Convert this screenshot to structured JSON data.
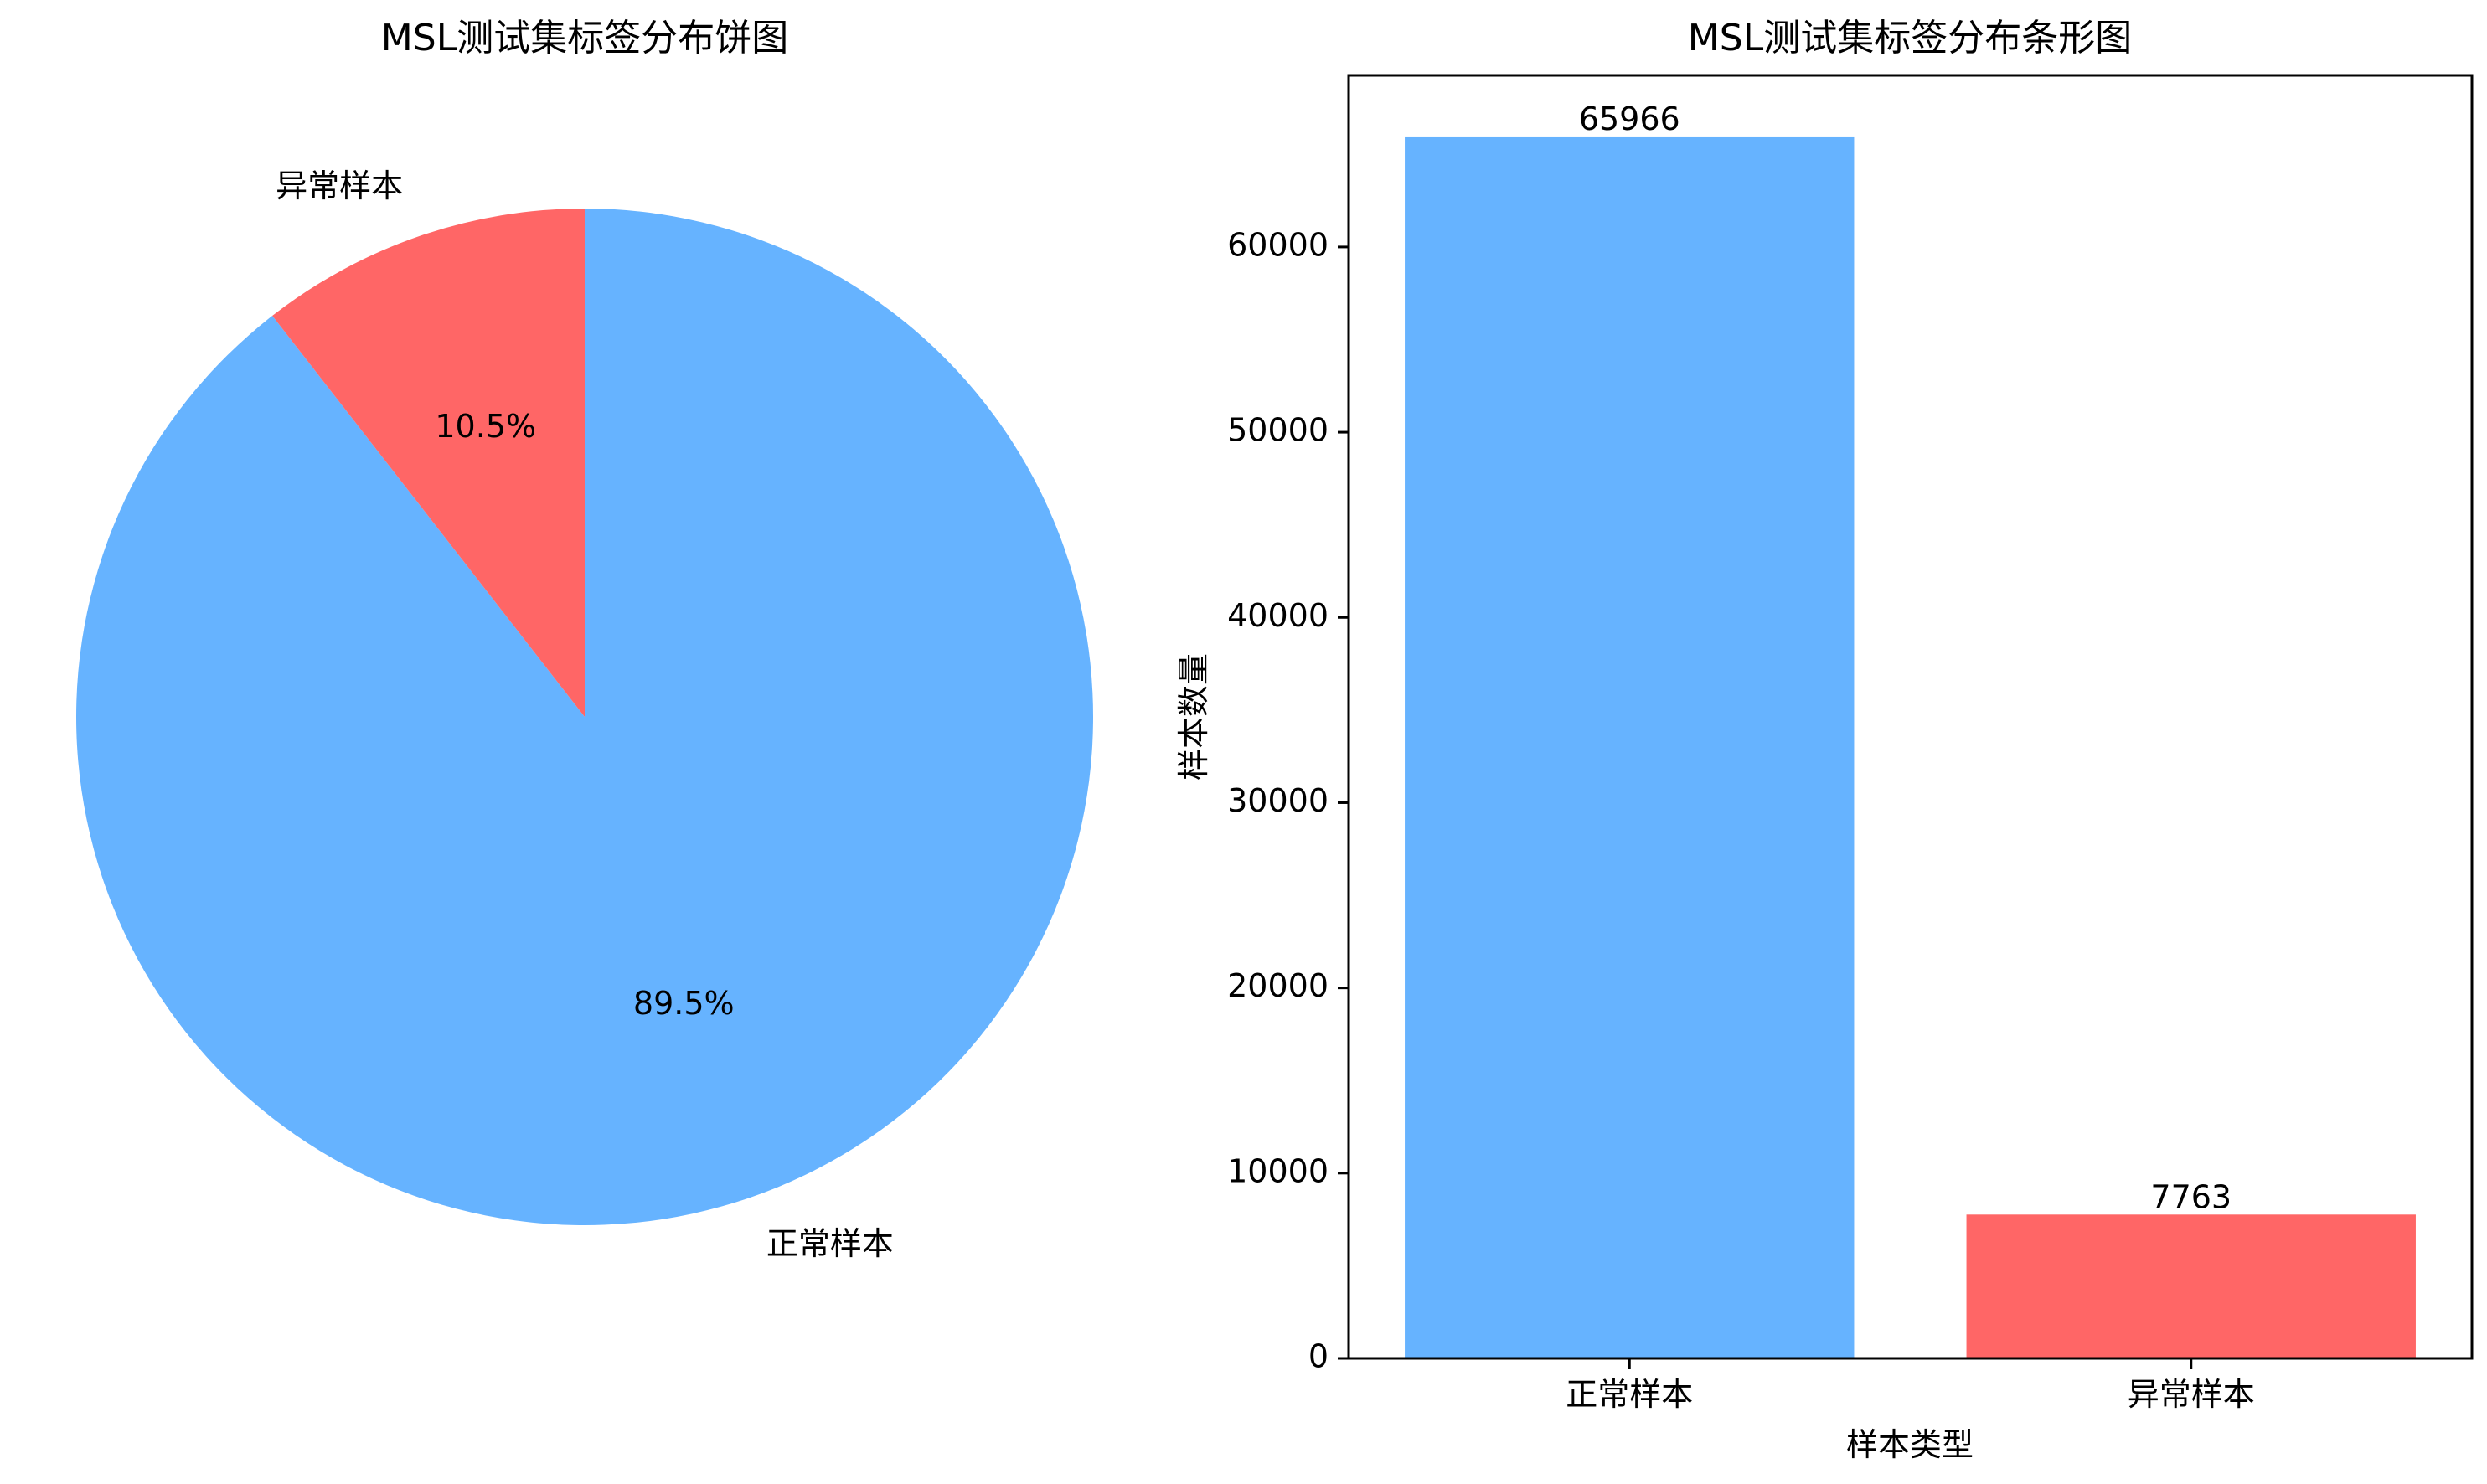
{
  "chart_data": [
    {
      "type": "pie",
      "title": "MSL测试集标签分布饼图",
      "categories": [
        "正常样本",
        "异常样本"
      ],
      "values": [
        65966,
        7763
      ],
      "percent_labels": [
        "89.5%",
        "10.5%"
      ],
      "colors": [
        "#66b3ff",
        "#ff6666"
      ],
      "start_angle_deg": 90,
      "direction": "clockwise"
    },
    {
      "type": "bar",
      "title": "MSL测试集标签分布条形图",
      "categories": [
        "正常样本",
        "异常样本"
      ],
      "values": [
        65966,
        7763
      ],
      "value_labels": [
        "65966",
        "7763"
      ],
      "colors": [
        "#66b3ff",
        "#ff6666"
      ],
      "xlabel": "样本类型",
      "ylabel": "样本数量",
      "ylim": [
        0,
        69264
      ],
      "yticks": [
        0,
        10000,
        20000,
        30000,
        40000,
        50000,
        60000
      ],
      "grid": false
    }
  ]
}
